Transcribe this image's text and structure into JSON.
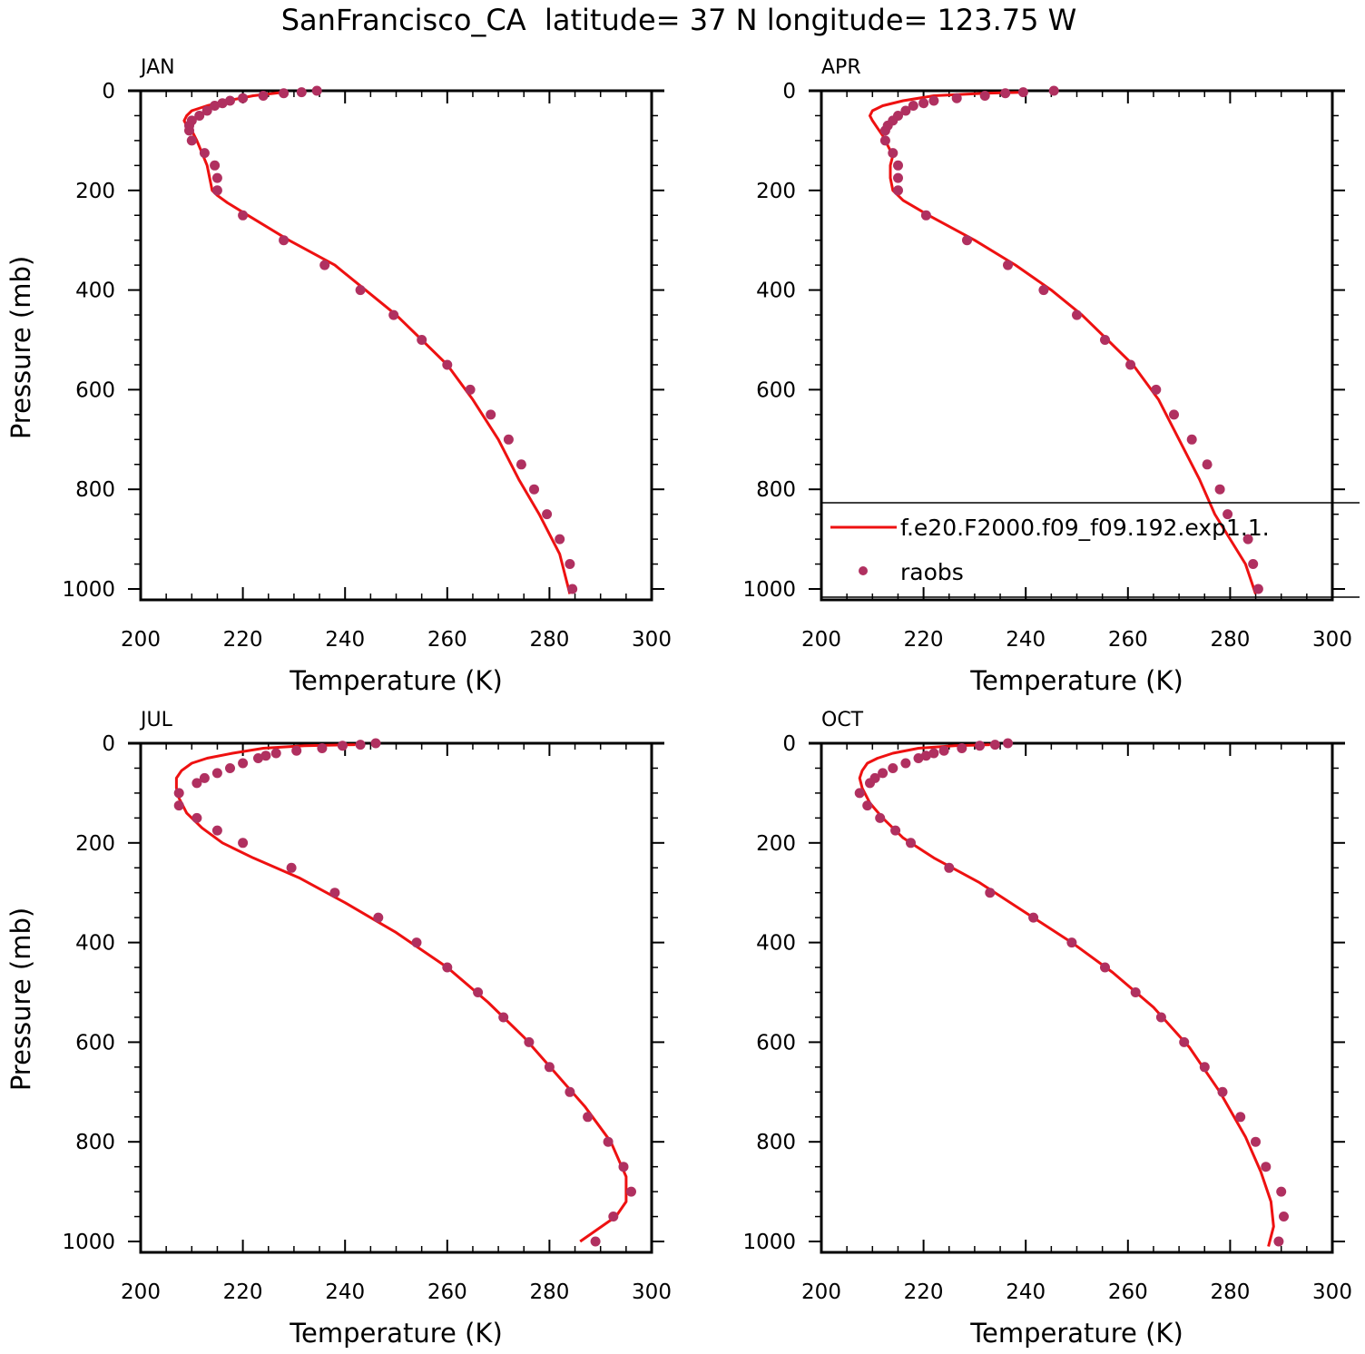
{
  "figure": {
    "title": "SanFrancisco_CA  latitude= 37 N longitude= 123.75 W"
  },
  "legend": {
    "model_label": "f.e20.F2000.f09_f09.192.exp1.1.",
    "obs_label": "raobs",
    "model_color": "#ee1111",
    "obs_color": "#b03060"
  },
  "chart_data": [
    {
      "type": "line",
      "panel_label": "JAN",
      "xlabel": "Temperature (K)",
      "ylabel": "Pressure (mb)",
      "xlim": [
        200,
        300
      ],
      "ylim": [
        1000,
        0
      ],
      "y_inverted": true,
      "x_ticks": [
        "200",
        "220",
        "240",
        "260",
        "280",
        "300"
      ],
      "y_ticks": [
        "0",
        "200",
        "400",
        "600",
        "800",
        "1000"
      ],
      "series": [
        {
          "name": "f.e20.F2000.f09_f09.192.exp1.1.",
          "kind": "line",
          "x": [
            228,
            222,
            217,
            213,
            210,
            209,
            208.5,
            209,
            210,
            211,
            212,
            213,
            213.5,
            214,
            215,
            217,
            221,
            229,
            238,
            244,
            250,
            255,
            260,
            265,
            270,
            274,
            278,
            282,
            284
          ],
          "y": [
            3,
            10,
            20,
            30,
            40,
            50,
            60,
            70,
            80,
            100,
            125,
            150,
            175,
            200,
            210,
            225,
            250,
            300,
            350,
            400,
            450,
            500,
            550,
            620,
            700,
            780,
            850,
            930,
            1010
          ]
        },
        {
          "name": "raobs",
          "kind": "scatter",
          "x": [
            234.5,
            231.5,
            228,
            224,
            220,
            217.5,
            216,
            214.5,
            213,
            211.5,
            210,
            209.5,
            209.5,
            210,
            212.5,
            214.5,
            215,
            215,
            220,
            228,
            236,
            243,
            249.5,
            255,
            260,
            264.5,
            268.5,
            272,
            274.5,
            277,
            279.5,
            282,
            284,
            284.5
          ],
          "y": [
            0,
            3,
            5,
            10,
            15,
            20,
            25,
            30,
            40,
            50,
            60,
            70,
            80,
            100,
            125,
            150,
            175,
            200,
            250,
            300,
            350,
            400,
            450,
            500,
            550,
            600,
            650,
            700,
            750,
            800,
            850,
            900,
            950,
            1000
          ]
        }
      ]
    },
    {
      "type": "line",
      "panel_label": "APR",
      "xlabel": "Temperature (K)",
      "ylabel": "",
      "xlim": [
        200,
        300
      ],
      "ylim": [
        1000,
        0
      ],
      "y_inverted": true,
      "x_ticks": [
        "200",
        "220",
        "240",
        "260",
        "280",
        "300"
      ],
      "y_ticks": [
        "0",
        "200",
        "400",
        "600",
        "800",
        "1000"
      ],
      "series": [
        {
          "name": "f.e20.F2000.f09_f09.192.exp1.1.",
          "kind": "line",
          "x": [
            240,
            232,
            222,
            216,
            212,
            210,
            209.5,
            210,
            211,
            212,
            213,
            214,
            213.5,
            213.5,
            214,
            216,
            221,
            230,
            238,
            245,
            251,
            256,
            261,
            266,
            270,
            274,
            277,
            280,
            283,
            285
          ],
          "y": [
            3,
            5,
            10,
            20,
            30,
            40,
            50,
            60,
            75,
            90,
            110,
            130,
            150,
            175,
            200,
            220,
            250,
            300,
            350,
            400,
            450,
            500,
            550,
            620,
            700,
            780,
            850,
            900,
            950,
            1010
          ]
        },
        {
          "name": "raobs",
          "kind": "scatter",
          "x": [
            245.5,
            239.5,
            236,
            232,
            226.5,
            222,
            220,
            218,
            216.5,
            215,
            214,
            213,
            212.5,
            212.5,
            214,
            215,
            215,
            215,
            220.5,
            228.5,
            236.5,
            243.5,
            250,
            255.5,
            260.5,
            265.5,
            269,
            272.5,
            275.5,
            278,
            279.5,
            283.5,
            284.5,
            285.5
          ],
          "y": [
            0,
            3,
            5,
            10,
            15,
            20,
            25,
            30,
            40,
            50,
            60,
            70,
            80,
            100,
            125,
            150,
            175,
            200,
            250,
            300,
            350,
            400,
            450,
            500,
            550,
            600,
            650,
            700,
            750,
            800,
            850,
            900,
            950,
            1000
          ]
        }
      ]
    },
    {
      "type": "line",
      "panel_label": "JUL",
      "xlabel": "Temperature (K)",
      "ylabel": "Pressure (mb)",
      "xlim": [
        200,
        300
      ],
      "ylim": [
        1000,
        0
      ],
      "y_inverted": true,
      "x_ticks": [
        "200",
        "220",
        "240",
        "260",
        "280",
        "300"
      ],
      "y_ticks": [
        "0",
        "200",
        "400",
        "600",
        "800",
        "1000"
      ],
      "series": [
        {
          "name": "f.e20.F2000.f09_f09.192.exp1.1.",
          "kind": "line",
          "x": [
            242,
            232,
            224,
            218,
            213,
            210,
            208,
            207,
            207,
            207.5,
            209,
            212,
            216,
            222,
            231,
            240,
            250,
            260,
            268,
            275,
            281,
            287,
            292,
            295,
            295,
            293,
            286
          ],
          "y": [
            3,
            5,
            10,
            20,
            30,
            40,
            55,
            70,
            90,
            110,
            140,
            170,
            200,
            230,
            270,
            320,
            380,
            450,
            520,
            590,
            660,
            730,
            800,
            870,
            920,
            950,
            1000
          ]
        },
        {
          "name": "raobs",
          "kind": "scatter",
          "x": [
            246,
            243,
            239.5,
            235.5,
            230.5,
            226.5,
            224.5,
            223,
            220,
            217.5,
            215,
            212.5,
            211,
            207.5,
            207.5,
            211,
            215,
            220,
            229.5,
            238,
            246.5,
            254,
            260,
            266,
            271,
            276,
            280,
            284,
            287.5,
            291.5,
            294.5,
            296,
            292.5,
            289
          ],
          "y": [
            0,
            3,
            5,
            10,
            15,
            20,
            25,
            30,
            40,
            50,
            60,
            70,
            80,
            100,
            125,
            150,
            175,
            200,
            250,
            300,
            350,
            400,
            450,
            500,
            550,
            600,
            650,
            700,
            750,
            800,
            850,
            900,
            950,
            1000
          ]
        }
      ]
    },
    {
      "type": "line",
      "panel_label": "OCT",
      "xlabel": "Temperature (K)",
      "ylabel": "",
      "xlim": [
        200,
        300
      ],
      "ylim": [
        1000,
        0
      ],
      "y_inverted": true,
      "x_ticks": [
        "200",
        "220",
        "240",
        "260",
        "280",
        "300"
      ],
      "y_ticks": [
        "0",
        "200",
        "400",
        "600",
        "800",
        "1000"
      ],
      "series": [
        {
          "name": "f.e20.F2000.f09_f09.192.exp1.1.",
          "kind": "line",
          "x": [
            233,
            226,
            219,
            214,
            211,
            209,
            208,
            207.5,
            208,
            209.5,
            212,
            216,
            222,
            231,
            240,
            249,
            257,
            265,
            272,
            278,
            283,
            286,
            288,
            288.5,
            287.5
          ],
          "y": [
            3,
            5,
            10,
            20,
            30,
            40,
            55,
            70,
            90,
            120,
            150,
            190,
            230,
            280,
            340,
            400,
            460,
            530,
            610,
            700,
            790,
            860,
            920,
            970,
            1010
          ]
        },
        {
          "name": "raobs",
          "kind": "scatter",
          "x": [
            236.5,
            234,
            231,
            227.5,
            224,
            222,
            220.5,
            219,
            216.5,
            214,
            212,
            210.5,
            209.5,
            207.5,
            209,
            211.5,
            214.5,
            217.5,
            225,
            233,
            241.5,
            249,
            255.5,
            261.5,
            266.5,
            271,
            275,
            278.5,
            282,
            285,
            287,
            290,
            290.5,
            289.5
          ],
          "y": [
            0,
            3,
            5,
            10,
            15,
            20,
            25,
            30,
            40,
            50,
            60,
            70,
            80,
            100,
            125,
            150,
            175,
            200,
            250,
            300,
            350,
            400,
            450,
            500,
            550,
            600,
            650,
            700,
            750,
            800,
            850,
            900,
            950,
            1000
          ]
        }
      ]
    }
  ]
}
